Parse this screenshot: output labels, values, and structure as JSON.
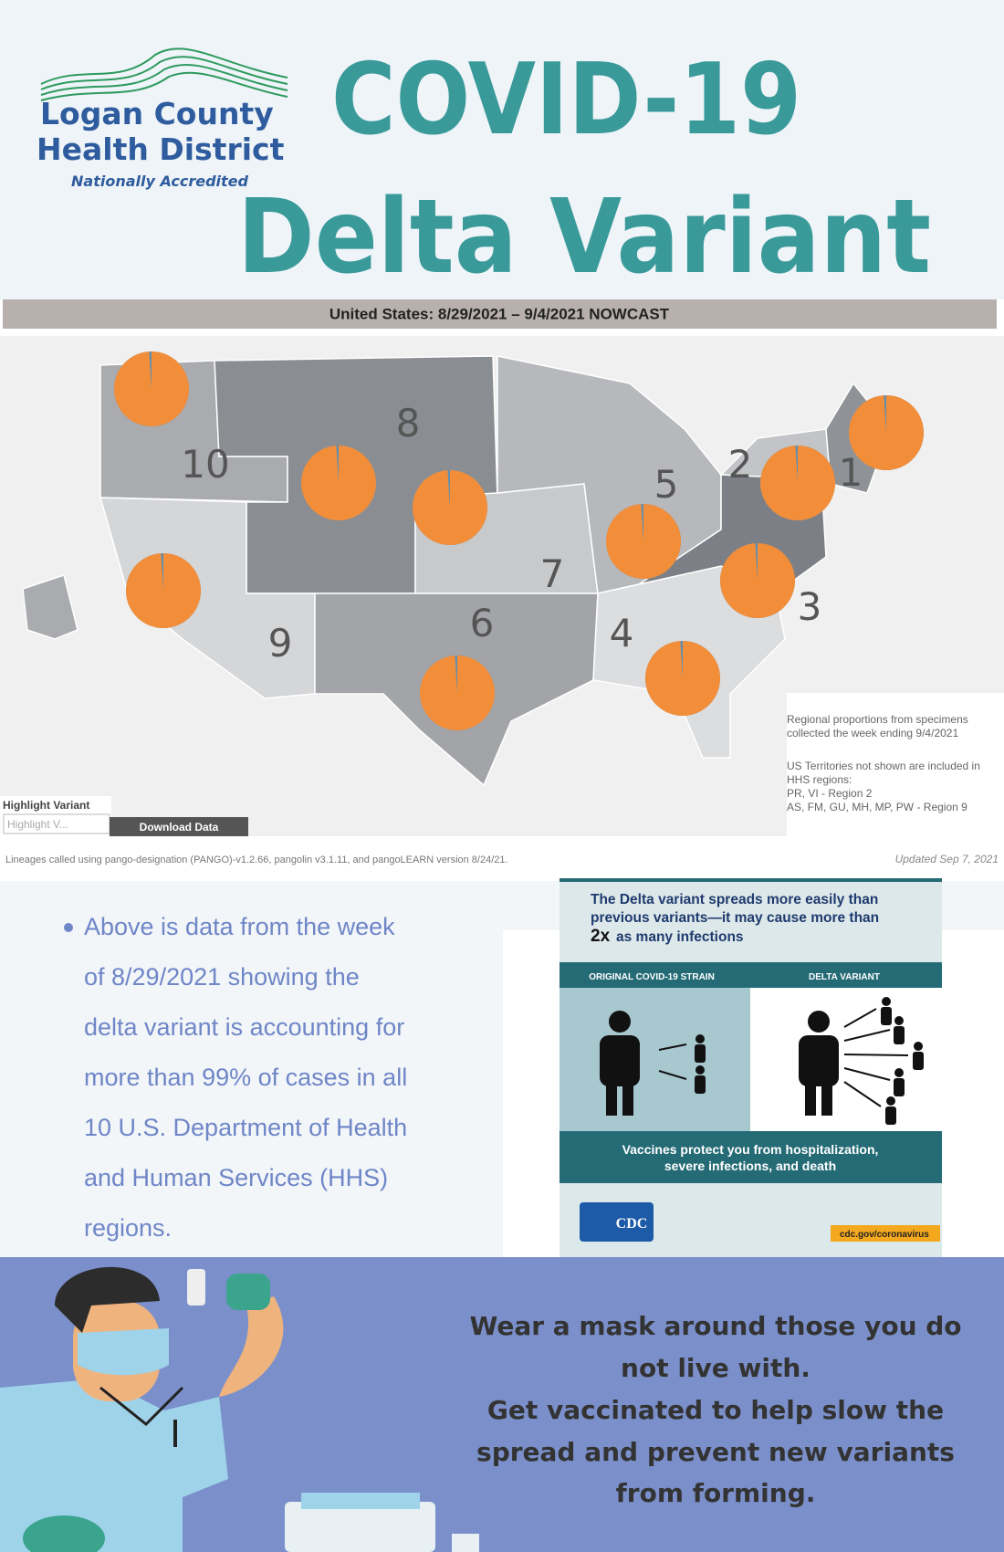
{
  "header": {
    "logo_line1": "Logan County",
    "logo_line2": "Health District",
    "logo_tagline": "Nationally Accredited",
    "title": "COVID-19",
    "subtitle": "Delta Variant"
  },
  "map": {
    "title": "United States: 8/29/2021 – 9/4/2021 NOWCAST",
    "regions": [
      {
        "label": "1",
        "delta_percent": 99
      },
      {
        "label": "2",
        "delta_percent": 99
      },
      {
        "label": "3",
        "delta_percent": 99
      },
      {
        "label": "4",
        "delta_percent": 99
      },
      {
        "label": "5",
        "delta_percent": 99
      },
      {
        "label": "6",
        "delta_percent": 99
      },
      {
        "label": "7",
        "delta_percent": 99
      },
      {
        "label": "8",
        "delta_percent": 99
      },
      {
        "label": "9",
        "delta_percent": 99
      },
      {
        "label": "10",
        "delta_percent": 99
      }
    ],
    "notes": [
      "Regional proportions from specimens",
      "collected the week ending 9/4/2021",
      "US Territories not shown are included in",
      "HHS regions:",
      "PR, VI - Region 2",
      "AS, FM, GU, MH, MP, PW - Region 9"
    ],
    "highlight_label": "Highlight Variant",
    "highlight_placeholder": "Highlight V...",
    "download_button": "Download Data",
    "lineage_note": "Lineages called using pango-designation (PANGO)-v1.2.66, pangolin v3.1.11, and pangoLEARN version 8/24/21.",
    "updated": "Updated Sep 7, 2021"
  },
  "summary": {
    "lines": [
      "Above is data from the week",
      "of 8/29/2021 showing the",
      "delta variant is accounting for",
      "more than 99% of cases in all",
      "10 U.S. Department of Health",
      "and Human Services (HHS)",
      "regions."
    ]
  },
  "cdc": {
    "headline_lines": [
      "The Delta variant spreads more easily than",
      "previous variants—it may cause more than"
    ],
    "headline_bold": "2x",
    "headline_end": "as many infections",
    "original_label": "ORIGINAL COVID-19 STRAIN",
    "delta_label": "DELTA VARIANT",
    "protect_lines": [
      "Vaccines protect you from hospitalization,",
      "severe infections, and death"
    ],
    "logo": "CDC",
    "url": "cdc.gov/coronavirus"
  },
  "message": {
    "lines": [
      "Wear a mask around those you do",
      "not live with.",
      "Get vaccinated to help slow the",
      "spread and prevent new variants",
      "from forming."
    ]
  }
}
